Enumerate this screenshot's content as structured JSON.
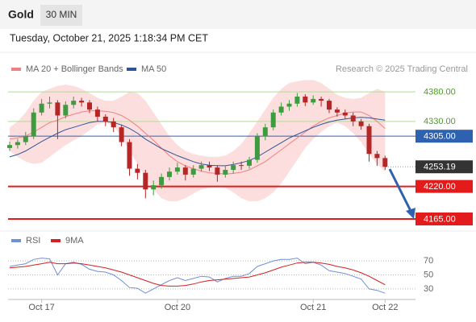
{
  "header": {
    "title": "Gold",
    "interval": "30 MIN",
    "datetime": "Tuesday, October 21, 2025 1:18:34 PM CET"
  },
  "chart_data": [
    {
      "type": "candlestick",
      "source": "Research © 2025 Trading Central",
      "ylim": [
        4150,
        4406
      ],
      "up_color": "#3f9b3f",
      "down_color": "#b52626",
      "open": [
        4285,
        4290,
        4295,
        4305,
        4345,
        4360,
        4362,
        4340,
        4358,
        4365,
        4362,
        4350,
        4338,
        4330,
        4320,
        4295,
        4250,
        4243,
        4215,
        4222,
        4236,
        4245,
        4252,
        4240,
        4250,
        4256,
        4252,
        4240,
        4248,
        4256,
        4255,
        4265,
        4305,
        4320,
        4345,
        4355,
        4360,
        4372,
        4362,
        4368,
        4365,
        4350,
        4345,
        4340,
        4330,
        4322,
        4275,
        4268
      ],
      "high": [
        4296,
        4300,
        4312,
        4352,
        4368,
        4372,
        4366,
        4364,
        4372,
        4370,
        4366,
        4355,
        4342,
        4336,
        4324,
        4300,
        4258,
        4248,
        4230,
        4242,
        4252,
        4260,
        4256,
        4256,
        4262,
        4262,
        4256,
        4254,
        4262,
        4262,
        4270,
        4310,
        4326,
        4350,
        4362,
        4366,
        4378,
        4376,
        4374,
        4372,
        4368,
        4354,
        4350,
        4345,
        4334,
        4326,
        4280,
        4272
      ],
      "low": [
        4280,
        4284,
        4290,
        4300,
        4340,
        4352,
        4300,
        4335,
        4352,
        4355,
        4344,
        4330,
        4322,
        4312,
        4288,
        4238,
        4232,
        4200,
        4205,
        4216,
        4230,
        4240,
        4230,
        4235,
        4245,
        4246,
        4228,
        4235,
        4242,
        4248,
        4250,
        4260,
        4298,
        4315,
        4340,
        4348,
        4355,
        4356,
        4358,
        4355,
        4344,
        4338,
        4334,
        4322,
        4316,
        4262,
        4255,
        4248
      ],
      "close": [
        4290,
        4295,
        4305,
        4345,
        4360,
        4362,
        4340,
        4358,
        4365,
        4362,
        4350,
        4338,
        4330,
        4320,
        4295,
        4250,
        4243,
        4215,
        4222,
        4236,
        4245,
        4252,
        4240,
        4250,
        4256,
        4252,
        4240,
        4248,
        4256,
        4255,
        4265,
        4305,
        4320,
        4345,
        4355,
        4360,
        4372,
        4362,
        4368,
        4365,
        4350,
        4345,
        4340,
        4330,
        4322,
        4275,
        4268,
        4253.19
      ],
      "series": [
        {
          "name": "MA 20 + Bollinger Bands",
          "color": "#f08080",
          "band_color": "#fbd3d3",
          "values": [
            4300,
            4302,
            4305,
            4312,
            4320,
            4328,
            4332,
            4338,
            4342,
            4346,
            4348,
            4348,
            4347,
            4345,
            4340,
            4332,
            4322,
            4310,
            4298,
            4285,
            4272,
            4262,
            4255,
            4250,
            4246,
            4243,
            4242,
            4241,
            4242,
            4244,
            4248,
            4255,
            4262,
            4272,
            4282,
            4292,
            4302,
            4312,
            4322,
            4330,
            4336,
            4340,
            4344,
            4346,
            4346,
            4340,
            4330,
            4318
          ],
          "upper": [
            4320,
            4330,
            4345,
            4365,
            4380,
            4385,
            4390,
            4392,
            4390,
            4385,
            4378,
            4370,
            4365,
            4365,
            4372,
            4380,
            4378,
            4365,
            4345,
            4325,
            4305,
            4290,
            4280,
            4275,
            4272,
            4270,
            4270,
            4272,
            4280,
            4292,
            4310,
            4330,
            4350,
            4370,
            4385,
            4395,
            4398,
            4400,
            4400,
            4395,
            4385,
            4375,
            4370,
            4368,
            4370,
            4378,
            4385,
            4380
          ],
          "lower": [
            4280,
            4270,
            4262,
            4258,
            4260,
            4270,
            4280,
            4290,
            4298,
            4305,
            4315,
            4325,
            4328,
            4322,
            4305,
            4280,
            4258,
            4235,
            4215,
            4200,
            4195,
            4195,
            4200,
            4208,
            4215,
            4218,
            4220,
            4218,
            4210,
            4200,
            4195,
            4195,
            4200,
            4210,
            4225,
            4245,
            4265,
            4285,
            4300,
            4312,
            4322,
            4328,
            4322,
            4310,
            4295,
            4275,
            4258,
            4245
          ]
        },
        {
          "name": "MA 50",
          "color": "#2f5597",
          "values": [
            4270,
            4274,
            4280,
            4288,
            4296,
            4303,
            4310,
            4316,
            4320,
            4324,
            4328,
            4330,
            4330,
            4328,
            4324,
            4318,
            4310,
            4300,
            4292,
            4284,
            4278,
            4272,
            4267,
            4262,
            4258,
            4256,
            4255,
            4255,
            4257,
            4260,
            4264,
            4270,
            4278,
            4286,
            4294,
            4302,
            4308,
            4314,
            4320,
            4325,
            4329,
            4332,
            4334,
            4336,
            4337,
            4336,
            4334,
            4332
          ]
        }
      ],
      "levels": [
        {
          "value": 4380,
          "label": "4380.00",
          "color": "#b5d99c",
          "text_color": "#4f9a2a",
          "box": false,
          "width": 1,
          "dash": false
        },
        {
          "value": 4330,
          "label": "4330.00",
          "color": "#b5d99c",
          "text_color": "#4f9a2a",
          "box": false,
          "width": 1,
          "dash": false
        },
        {
          "value": 4305,
          "label": "4305.00",
          "color": "#2e62b0",
          "text_color": "#ffffff",
          "box": true,
          "width": 1,
          "dash": false
        },
        {
          "value": 4253.19,
          "label": "4253.19",
          "color": "#333333",
          "text_color": "#ffffff",
          "box": true,
          "width": 1,
          "dash": true
        },
        {
          "value": 4220,
          "label": "4220.00",
          "color": "#e31b1b",
          "text_color": "#ffffff",
          "box": true,
          "width": 2,
          "dash": false
        },
        {
          "value": 4165,
          "label": "4165.00",
          "color": "#e31b1b",
          "text_color": "#ffffff",
          "box": true,
          "width": 2,
          "dash": false
        }
      ]
    },
    {
      "type": "line",
      "ylim": [
        15,
        85
      ],
      "yticks": [
        30,
        50,
        70
      ],
      "categories": [
        null,
        null,
        null,
        null,
        "Oct 17",
        null,
        null,
        null,
        null,
        null,
        null,
        null,
        null,
        null,
        null,
        null,
        null,
        null,
        null,
        null,
        null,
        "Oct 20",
        null,
        null,
        null,
        null,
        null,
        null,
        null,
        null,
        null,
        null,
        null,
        null,
        null,
        null,
        null,
        null,
        "Oct 21",
        null,
        null,
        null,
        null,
        null,
        null,
        null,
        null,
        "Oct 22"
      ],
      "series": [
        {
          "name": "RSI",
          "color": "#6f8fd8",
          "values": [
            62,
            64,
            66,
            72,
            74,
            73,
            50,
            66,
            68,
            65,
            58,
            55,
            54,
            50,
            42,
            32,
            31,
            24,
            30,
            36,
            42,
            46,
            42,
            45,
            48,
            47,
            40,
            45,
            48,
            48,
            52,
            62,
            66,
            70,
            72,
            72,
            74,
            66,
            68,
            64,
            56,
            54,
            52,
            48,
            44,
            30,
            28,
            24
          ]
        },
        {
          "name": "9MA",
          "color": "#d42020",
          "values": [
            60,
            61,
            62,
            64,
            66,
            68,
            66,
            66,
            67,
            66,
            64,
            62,
            60,
            57,
            54,
            50,
            46,
            42,
            38,
            35,
            34,
            34,
            35,
            37,
            40,
            42,
            43,
            44,
            45,
            46,
            47,
            50,
            53,
            57,
            61,
            64,
            67,
            68,
            68,
            67,
            65,
            62,
            60,
            57,
            53,
            48,
            42,
            36
          ]
        }
      ]
    }
  ]
}
